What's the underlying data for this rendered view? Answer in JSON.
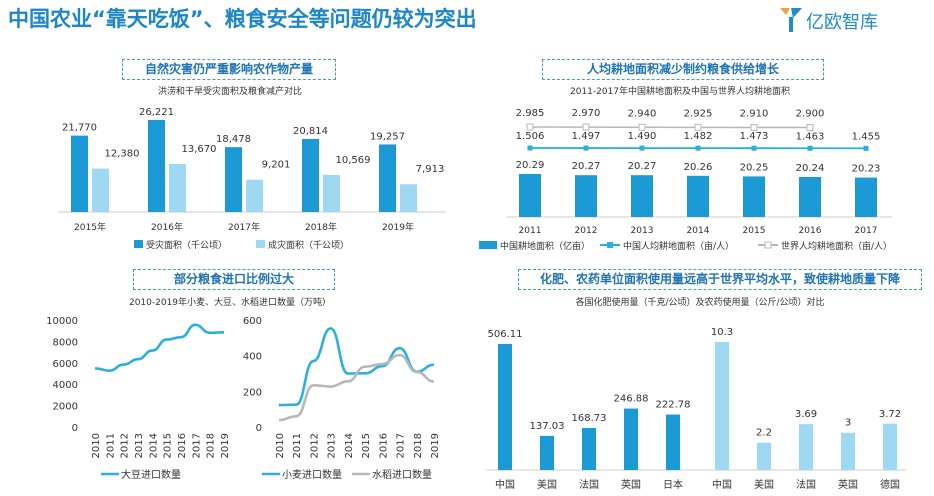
{
  "header": {
    "title": "中国农业“靠天吃饭”、粮食安全等问题仍较为突出",
    "logo_text": "亿欧智库"
  },
  "colors": {
    "dark_blue": "#1b9ad6",
    "light_blue": "#9ed8f2",
    "line_blue": "#2ab1d9",
    "gray": "#b8b8b8",
    "title_blue": "#1b86c9"
  },
  "panels": {
    "p1": {
      "title": "自然灾害仍严重影响农作物产量",
      "subtitle": "洪涝和干旱受灾面积及粮食减产对比"
    },
    "p2": {
      "title": "人均耕地面积减少制约粮食供给增长",
      "subtitle": "2011-2017年中国耕地面积及中国与世界人均耕地面积"
    },
    "p3": {
      "title": "部分粮食进口比例过大",
      "subtitle": "2010-2019年小麦、大豆、水稻进口数量（万吨）"
    },
    "p4": {
      "title": "化肥、农药单位面积使用量远高于世界平均水平，致使耕地质量下降",
      "subtitle": "各国化肥使用量（千克/公顷）及农药使用量（公斤/公顷）对比"
    }
  },
  "chart_data": [
    {
      "id": "disaster",
      "type": "bar",
      "categories": [
        "2015年",
        "2016年",
        "2017年",
        "2018年",
        "2019年"
      ],
      "series": [
        {
          "name": "受灾面积（千公顷）",
          "values": [
            21770,
            26221,
            18478,
            20814,
            19257
          ],
          "labels": [
            "21,770",
            "26,221",
            "18,478",
            "20,814",
            "19,257"
          ]
        },
        {
          "name": "成灾面积（千公顷）",
          "values": [
            12380,
            13670,
            9201,
            10569,
            7913
          ],
          "labels": [
            "12,380",
            "13,670",
            "9,201",
            "10,569",
            "7,913"
          ]
        }
      ]
    },
    {
      "id": "land",
      "type": "bar",
      "categories": [
        "2011",
        "2012",
        "2013",
        "2014",
        "2015",
        "2016",
        "2017"
      ],
      "series": [
        {
          "name": "中国耕地面积（亿亩）",
          "kind": "bar",
          "values": [
            20.29,
            20.27,
            20.27,
            20.26,
            20.25,
            20.24,
            20.23
          ],
          "labels": [
            "20.29",
            "20.27",
            "20.27",
            "20.26",
            "20.25",
            "20.24",
            "20.23"
          ]
        },
        {
          "name": "中国人均耕地面积（亩/人）",
          "kind": "line",
          "values": [
            1.506,
            1.497,
            1.49,
            1.482,
            1.473,
            1.463,
            1.455
          ],
          "labels": [
            "1.506",
            "1.497",
            "1.490",
            "1.482",
            "1.473",
            "1.463",
            "1.455"
          ]
        },
        {
          "name": "世界人均耕地面积（亩/人）",
          "kind": "line",
          "values": [
            2.985,
            2.97,
            2.94,
            2.925,
            2.91,
            2.9,
            null
          ],
          "labels": [
            "2.985",
            "2.970",
            "2.940",
            "2.925",
            "2.910",
            "2.900",
            ""
          ]
        }
      ]
    },
    {
      "id": "soy",
      "type": "line",
      "x": [
        "2010",
        "2011",
        "2012",
        "2013",
        "2014",
        "2015",
        "2016",
        "2017",
        "2018",
        "2019"
      ],
      "yticks": [
        "10000",
        "8000",
        "6000",
        "4000",
        "2000",
        "0"
      ],
      "ylim": [
        0,
        10000
      ],
      "series": [
        {
          "name": "大豆进口数量",
          "values": [
            5480,
            5264,
            5838,
            6338,
            7140,
            8169,
            8391,
            9553,
            8803,
            8851
          ]
        }
      ]
    },
    {
      "id": "wheat_rice",
      "type": "line",
      "x": [
        "2010",
        "2011",
        "2012",
        "2013",
        "2014",
        "2015",
        "2016",
        "2017",
        "2018",
        "2019"
      ],
      "yticks": [
        "600",
        "400",
        "200",
        "0"
      ],
      "ylim": [
        0,
        600
      ],
      "series": [
        {
          "name": "小麦进口数量",
          "values": [
            123,
            125,
            370,
            553,
            300,
            301,
            341,
            442,
            310,
            349
          ]
        },
        {
          "name": "水稻进口数量",
          "values": [
            39,
            60,
            234,
            227,
            256,
            338,
            353,
            403,
            308,
            255
          ]
        }
      ]
    },
    {
      "id": "fert",
      "type": "bar",
      "categories": [
        "中国",
        "美国",
        "法国",
        "英国",
        "日本"
      ],
      "values": [
        506.11,
        137.03,
        168.73,
        246.88,
        222.78
      ],
      "labels": [
        "506.11",
        "137.03",
        "168.73",
        "246.88",
        "222.78"
      ]
    },
    {
      "id": "pest",
      "type": "bar",
      "categories": [
        "中国",
        "美国",
        "法国",
        "英国",
        "德国"
      ],
      "values": [
        10.3,
        2.2,
        3.69,
        3,
        3.72
      ],
      "labels": [
        "10.3",
        "2.2",
        "3.69",
        "3",
        "3.72"
      ]
    }
  ]
}
